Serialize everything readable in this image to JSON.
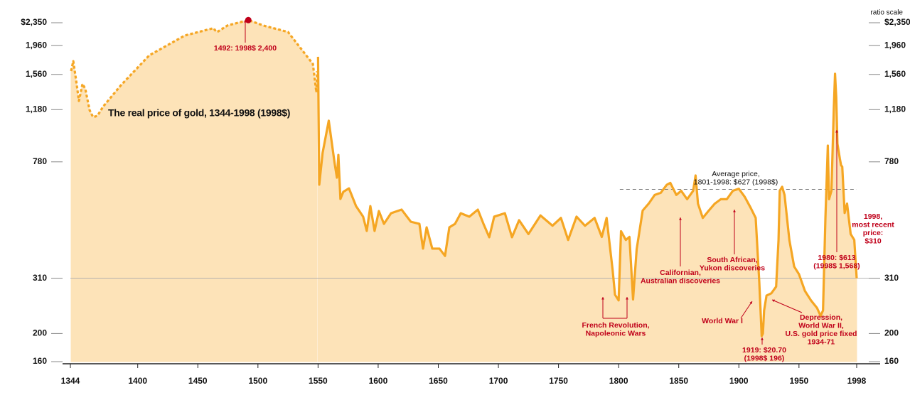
{
  "chart_data": {
    "type": "line",
    "title": "The real price of gold, 1344-1998 (1998$)",
    "axis_note": "ratio scale",
    "log_scale": true,
    "fill_color": "#fde3b8",
    "xlim": [
      1344,
      1998
    ],
    "xticks": [
      1344,
      1400,
      1450,
      1500,
      1550,
      1600,
      1650,
      1700,
      1750,
      1800,
      1850,
      1900,
      1950,
      1998
    ],
    "ylim": [
      160,
      2350
    ],
    "yticks": [
      160,
      200,
      310,
      780,
      {
        "value": 1180,
        "label": "1,180"
      },
      {
        "value": 1560,
        "label": "1,560"
      },
      {
        "value": 1960,
        "label": "1,960"
      },
      {
        "value": 2350,
        "label": "$2,350"
      }
    ],
    "series": [
      {
        "color": "#f5a623",
        "dashed": true,
        "x": [
          1344.6,
          1346.4,
          1348.7,
          1351.1,
          1354.1,
          1356.4,
          1360,
          1362.9,
          1366.5,
          1371.2,
          1386,
          1409.6,
          1439.2,
          1462.9,
          1465.8,
          1474.7,
          1492,
          1504.3,
          1525,
          1545.7,
          1548.6,
          1549.2
        ],
        "values": [
          1602,
          1733,
          1497,
          1264,
          1448,
          1391,
          1175,
          1111,
          1124,
          1208,
          1431,
          1814,
          2124,
          2250,
          2180,
          2300,
          2400,
          2300,
          2184,
          1695,
          1353,
          1600
        ]
      },
      {
        "color": "#f5a623",
        "dashed": false,
        "x": [
          1550,
          1551,
          1553.8,
          1558.9,
          1563.8,
          1565.7,
          1566.9,
          1568.6,
          1571,
          1575.7,
          1581.6,
          1587.5,
          1590.5,
          1593.5,
          1597,
          1600.6,
          1604.8,
          1610.7,
          1619.5,
          1627.2,
          1634.3,
          1637.3,
          1640.3,
          1645,
          1651,
          1655.6,
          1659.2,
          1663.9,
          1668.7,
          1675.8,
          1682.9,
          1687.6,
          1692.4,
          1696.5,
          1705.4,
          1711.3,
          1717.2,
          1725,
          1735,
          1745,
          1752,
          1758,
          1765,
          1772,
          1780,
          1786,
          1790,
          1795,
          1797,
          1800,
          1802,
          1806,
          1809,
          1812,
          1815,
          1820,
          1825,
          1830,
          1835,
          1840,
          1843,
          1848,
          1852,
          1857,
          1862,
          1864,
          1866,
          1870,
          1875,
          1880,
          1885,
          1890,
          1895,
          1900,
          1905,
          1910,
          1914,
          1917,
          1919,
          1920,
          1921,
          1923,
          1927,
          1931,
          1933,
          1934,
          1936,
          1938,
          1942,
          1946,
          1950,
          1955,
          1960,
          1965,
          1968,
          1970,
          1972,
          1974,
          1975,
          1977,
          1979,
          1980,
          1981,
          1982,
          1984,
          1985,
          1986,
          1988,
          1990,
          1993,
          1996,
          1998
        ],
        "values": [
          1794,
          651,
          838,
          1081,
          771,
          688,
          824,
          581,
          615,
          632,
          549,
          505,
          451,
          549,
          451,
          528,
          477,
          519,
          534,
          485,
          477,
          392,
          464,
          392,
          392,
          370,
          464,
          477,
          519,
          505,
          534,
          477,
          429,
          505,
          519,
          429,
          491,
          440,
          510,
          470,
          500,
          420,
          505,
          470,
          500,
          430,
          500,
          331,
          272,
          260,
          450,
          420,
          430,
          262,
          390,
          530,
          560,
          600,
          610,
          650,
          660,
          600,
          620,
          580,
          620,
          700,
          560,
          500,
          530,
          560,
          580,
          580,
          620,
          630,
          590,
          540,
          500,
          300,
          196,
          200,
          240,
          270,
          275,
          290,
          420,
          620,
          640,
          600,
          420,
          340,
          320,
          280,
          260,
          245,
          230,
          240,
          500,
          887,
          580,
          620,
          1200,
          1568,
          1300,
          900,
          800,
          760,
          750,
          520,
          560,
          440,
          420,
          310
        ]
      }
    ],
    "peak": {
      "x": 1492,
      "value": 2400,
      "color": "#c0001a"
    },
    "average_line": {
      "value": 627,
      "from": 1801,
      "to": 1998
    },
    "annotations": [
      {
        "lines": [
          "1492: 1998$ 2,400"
        ]
      },
      {
        "lines": [
          "Average price,",
          "1801-1998: $627 (1998$)"
        ]
      },
      {
        "lines": [
          "French Revolution,",
          "Napoleonic Wars"
        ]
      },
      {
        "lines": [
          "Californian,",
          "Australian discoveries"
        ]
      },
      {
        "lines": [
          "South African,",
          "Yukon discoveries"
        ]
      },
      {
        "lines": [
          "World War I"
        ]
      },
      {
        "lines": [
          "Depression,",
          "World War II,",
          "U.S. gold price fixed",
          "1934-71"
        ]
      },
      {
        "lines": [
          "1919: $20.70",
          "(1998$ 196)"
        ]
      },
      {
        "lines": [
          "1980: $613",
          "(1998$ 1,568)"
        ]
      },
      {
        "lines": [
          "1998,",
          "most recent",
          "price:",
          "$310"
        ]
      }
    ]
  }
}
